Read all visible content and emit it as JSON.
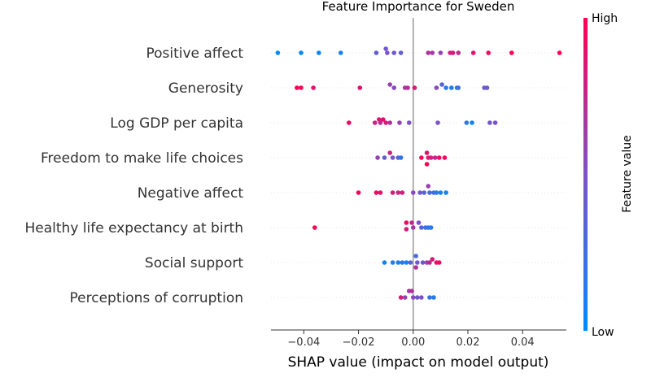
{
  "chart_data": {
    "type": "scatter",
    "title": "Feature Importance for Sweden",
    "xlabel": "SHAP value (impact on model output)",
    "xlim": [
      -0.052,
      0.056
    ],
    "xticks": [
      -0.04,
      -0.02,
      0.0,
      0.02,
      0.04
    ],
    "xtick_labels": [
      "−0.04",
      "−0.02",
      "0.00",
      "0.02",
      "0.04"
    ],
    "colorbar": {
      "label": "Feature value",
      "high": "High",
      "low": "Low",
      "low_color": "#008bfb",
      "high_color": "#ff0052"
    },
    "features": [
      {
        "name": "Positive affect",
        "points": [
          {
            "x": -0.0495,
            "v": 0.0
          },
          {
            "x": -0.041,
            "v": 0.02
          },
          {
            "x": -0.0345,
            "v": 0.05
          },
          {
            "x": -0.0265,
            "v": 0.07
          },
          {
            "x": -0.0135,
            "v": 0.4
          },
          {
            "x": -0.01,
            "v": 0.45,
            "o": -5
          },
          {
            "x": -0.0095,
            "v": 0.5
          },
          {
            "x": -0.007,
            "v": 0.45
          },
          {
            "x": -0.0045,
            "v": 0.4
          },
          {
            "x": 0.0055,
            "v": 0.7
          },
          {
            "x": 0.007,
            "v": 0.65
          },
          {
            "x": 0.01,
            "v": 0.6
          },
          {
            "x": 0.0135,
            "v": 0.8
          },
          {
            "x": 0.0145,
            "v": 0.85
          },
          {
            "x": 0.0165,
            "v": 0.75
          },
          {
            "x": 0.022,
            "v": 0.9
          },
          {
            "x": 0.0275,
            "v": 0.95
          },
          {
            "x": 0.036,
            "v": 1.0
          },
          {
            "x": 0.0535,
            "v": 1.0
          }
        ]
      },
      {
        "name": "Generosity",
        "points": [
          {
            "x": -0.0425,
            "v": 1.0
          },
          {
            "x": -0.041,
            "v": 0.95
          },
          {
            "x": -0.0365,
            "v": 0.9
          },
          {
            "x": -0.0195,
            "v": 0.9
          },
          {
            "x": -0.0085,
            "v": 0.6,
            "o": -4
          },
          {
            "x": -0.007,
            "v": 0.55
          },
          {
            "x": -0.003,
            "v": 0.65
          },
          {
            "x": -0.002,
            "v": 0.7
          },
          {
            "x": 0.0005,
            "v": 0.85
          },
          {
            "x": 0.0085,
            "v": 0.55
          },
          {
            "x": 0.0105,
            "v": 0.35,
            "o": -4
          },
          {
            "x": 0.012,
            "v": 0.15
          },
          {
            "x": 0.014,
            "v": 0.1
          },
          {
            "x": 0.016,
            "v": 0.2
          },
          {
            "x": 0.0165,
            "v": 0.25
          },
          {
            "x": 0.026,
            "v": 0.4
          },
          {
            "x": 0.027,
            "v": 0.45
          }
        ]
      },
      {
        "name": "Log GDP per capita",
        "points": [
          {
            "x": -0.0235,
            "v": 0.95
          },
          {
            "x": -0.014,
            "v": 0.8
          },
          {
            "x": -0.0125,
            "v": 0.85,
            "o": -4
          },
          {
            "x": -0.011,
            "v": 0.9,
            "o": -4
          },
          {
            "x": -0.012,
            "v": 0.75
          },
          {
            "x": -0.01,
            "v": 0.85
          },
          {
            "x": -0.0085,
            "v": 0.7
          },
          {
            "x": -0.005,
            "v": 0.6
          },
          {
            "x": -0.0015,
            "v": 0.5
          },
          {
            "x": 0.009,
            "v": 0.5
          },
          {
            "x": 0.0195,
            "v": 0.15
          },
          {
            "x": 0.0215,
            "v": 0.1
          },
          {
            "x": 0.028,
            "v": 0.45
          },
          {
            "x": 0.03,
            "v": 0.5
          }
        ]
      },
      {
        "name": "Freedom to make life choices",
        "points": [
          {
            "x": -0.0085,
            "v": 0.8,
            "o": -6
          },
          {
            "x": -0.013,
            "v": 0.6
          },
          {
            "x": -0.0105,
            "v": 0.4
          },
          {
            "x": -0.0075,
            "v": 0.45
          },
          {
            "x": -0.0055,
            "v": 0.35
          },
          {
            "x": -0.0045,
            "v": 0.2
          },
          {
            "x": 0.003,
            "v": 0.95
          },
          {
            "x": 0.005,
            "v": 0.9,
            "o": -6
          },
          {
            "x": 0.0055,
            "v": 0.85
          },
          {
            "x": 0.0065,
            "v": 0.8
          },
          {
            "x": 0.008,
            "v": 0.75
          },
          {
            "x": 0.0095,
            "v": 0.9
          },
          {
            "x": 0.0115,
            "v": 0.95
          },
          {
            "x": 0.005,
            "v": 1.0,
            "o": 8
          }
        ]
      },
      {
        "name": "Negative affect",
        "points": [
          {
            "x": -0.02,
            "v": 1.0
          },
          {
            "x": -0.0135,
            "v": 0.95
          },
          {
            "x": -0.012,
            "v": 0.9
          },
          {
            "x": -0.0075,
            "v": 0.85
          },
          {
            "x": -0.0055,
            "v": 0.8
          },
          {
            "x": -0.004,
            "v": 0.85
          },
          {
            "x": 0.0,
            "v": 0.55
          },
          {
            "x": 0.0025,
            "v": 0.45
          },
          {
            "x": 0.004,
            "v": 0.35
          },
          {
            "x": 0.0055,
            "v": 0.6,
            "o": -8
          },
          {
            "x": 0.006,
            "v": 0.3
          },
          {
            "x": 0.0075,
            "v": 0.25
          },
          {
            "x": 0.0085,
            "v": 0.15
          },
          {
            "x": 0.01,
            "v": 0.1
          },
          {
            "x": 0.012,
            "v": 0.05
          }
        ]
      },
      {
        "name": "Healthy life expectancy at birth",
        "points": [
          {
            "x": -0.036,
            "v": 1.0
          },
          {
            "x": -0.0025,
            "v": 0.95,
            "o": -6
          },
          {
            "x": -0.0025,
            "v": 0.85,
            "o": 2
          },
          {
            "x": -0.0005,
            "v": 0.75,
            "o": -6
          },
          {
            "x": 0.0,
            "v": 0.65
          },
          {
            "x": 0.002,
            "v": 0.5,
            "o": -6
          },
          {
            "x": 0.003,
            "v": 0.35
          },
          {
            "x": 0.0045,
            "v": 0.25
          },
          {
            "x": 0.0055,
            "v": 0.2
          },
          {
            "x": 0.0065,
            "v": 0.15
          }
        ]
      },
      {
        "name": "Social support",
        "points": [
          {
            "x": -0.0105,
            "v": 0.1
          },
          {
            "x": -0.0075,
            "v": 0.15
          },
          {
            "x": -0.0055,
            "v": 0.1
          },
          {
            "x": -0.004,
            "v": 0.2
          },
          {
            "x": -0.0025,
            "v": 0.05
          },
          {
            "x": -0.001,
            "v": 0.35
          },
          {
            "x": 0.001,
            "v": 0.3,
            "o": -8
          },
          {
            "x": 0.0015,
            "v": 0.45
          },
          {
            "x": 0.0035,
            "v": 0.4
          },
          {
            "x": 0.005,
            "v": 0.6
          },
          {
            "x": 0.006,
            "v": 0.75
          },
          {
            "x": 0.007,
            "v": 0.85,
            "o": -4
          },
          {
            "x": 0.0085,
            "v": 0.9
          },
          {
            "x": 0.0095,
            "v": 0.95
          },
          {
            "x": 0.001,
            "v": 0.7,
            "o": 6
          }
        ]
      },
      {
        "name": "Perceptions of corruption",
        "points": [
          {
            "x": -0.0045,
            "v": 0.85
          },
          {
            "x": -0.003,
            "v": 0.6
          },
          {
            "x": -0.0015,
            "v": 0.65,
            "o": -8
          },
          {
            "x": -0.0005,
            "v": 0.7,
            "o": -8
          },
          {
            "x": 0.0,
            "v": 0.55
          },
          {
            "x": 0.0015,
            "v": 0.45
          },
          {
            "x": 0.003,
            "v": 0.5
          },
          {
            "x": 0.006,
            "v": 0.2
          },
          {
            "x": 0.0075,
            "v": 0.15
          }
        ]
      }
    ]
  }
}
